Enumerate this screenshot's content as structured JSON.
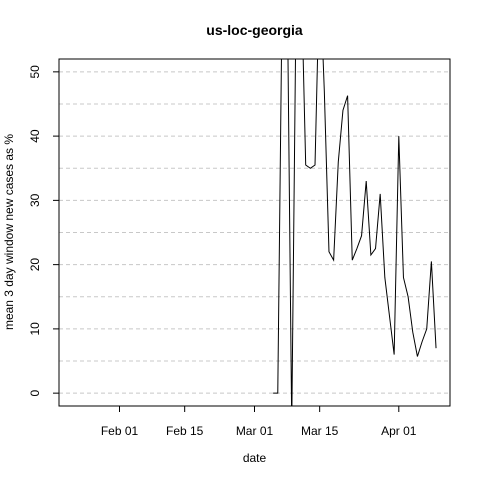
{
  "chart_data": {
    "type": "line",
    "title": "us-loc-georgia",
    "xlabel": "date",
    "ylabel": "mean  3  day window new cases as %",
    "ylim": [
      -2,
      52
    ],
    "x_ticks": [
      "2020-02-01",
      "2020-02-15",
      "2020-03-01",
      "2020-03-15",
      "2020-04-01"
    ],
    "x_tick_labels": [
      "Feb 01",
      "Feb 15",
      "Mar 01",
      "Mar 15",
      "Apr 01"
    ],
    "y_ticks": [
      0,
      10,
      20,
      30,
      40,
      50
    ],
    "grid": "horizontal dashed at y ticks and midpoints",
    "xlim": [
      "2020-01-19",
      "2020-04-12"
    ],
    "series": [
      {
        "x": [
          "2020-03-05",
          "2020-03-06",
          "2020-03-07",
          "2020-03-08",
          "2020-03-09",
          "2020-03-10",
          "2020-03-11",
          "2020-03-12",
          "2020-03-13",
          "2020-03-14",
          "2020-03-15",
          "2020-03-16",
          "2020-03-17",
          "2020-03-18",
          "2020-03-19",
          "2020-03-20",
          "2020-03-21",
          "2020-03-22",
          "2020-03-23",
          "2020-03-24",
          "2020-03-25",
          "2020-03-26",
          "2020-03-27",
          "2020-03-28",
          "2020-03-29",
          "2020-03-30",
          "2020-03-31",
          "2020-04-01",
          "2020-04-02",
          "2020-04-03",
          "2020-04-04",
          "2020-04-05",
          "2020-04-06",
          "2020-04-07",
          "2020-04-08",
          "2020-04-09"
        ],
        "y": [
          0,
          0,
          66,
          66,
          -5,
          66,
          66,
          35.5,
          35,
          35.5,
          66,
          47,
          22,
          20.7,
          36,
          44,
          46.3,
          20.7,
          22.5,
          24.5,
          33,
          21.5,
          22.5,
          31,
          18,
          12,
          6,
          40,
          18,
          15,
          9.5,
          5.7,
          8,
          10,
          20.5,
          7
        ]
      }
    ]
  }
}
